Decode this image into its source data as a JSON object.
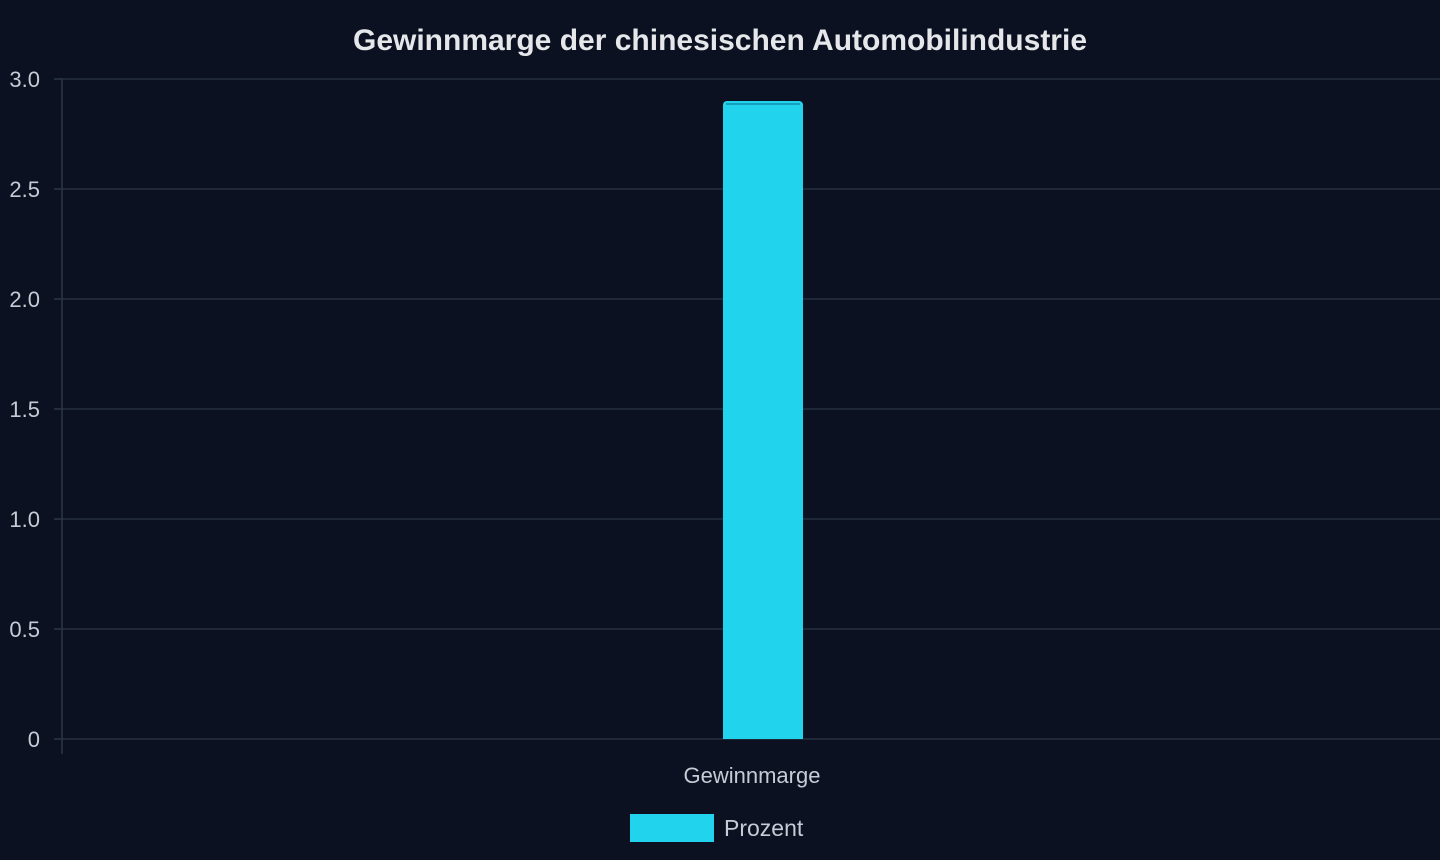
{
  "chart_data": {
    "type": "bar",
    "title": "Gewinnmarge der chinesischen Automobilindustrie",
    "categories": [
      "Gewinnmarge"
    ],
    "series": [
      {
        "name": "Prozent",
        "values": [
          2.9
        ],
        "color": "#22d3ee"
      }
    ],
    "ylim": [
      0,
      3.0
    ],
    "yticks": [
      "0",
      "0.5",
      "1.0",
      "1.5",
      "2.0",
      "2.5",
      "3.0"
    ],
    "ytick_values": [
      0,
      0.5,
      1.0,
      1.5,
      2.0,
      2.5,
      3.0
    ],
    "grid": true,
    "legend_position": "bottom",
    "colors": {
      "background": "#0b1120",
      "grid": "#263041",
      "axis": "#2d3748",
      "text": "#c7cbd6",
      "title": "#e5e7eb"
    }
  }
}
